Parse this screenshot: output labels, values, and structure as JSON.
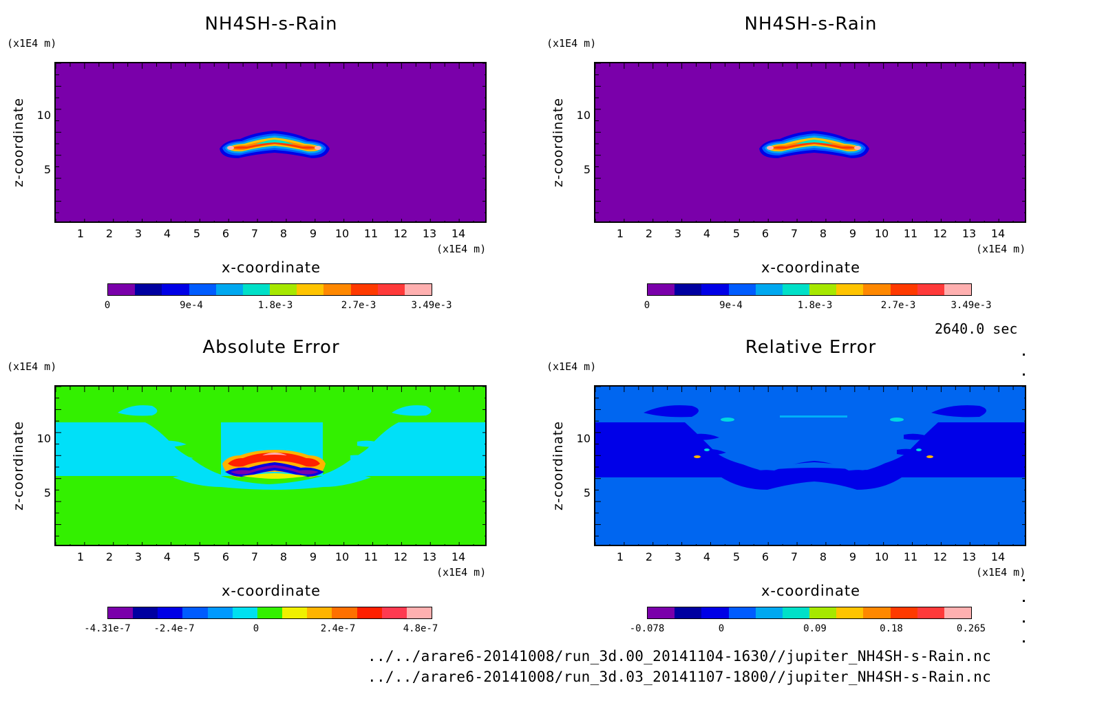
{
  "colors": {
    "purple": "#7a00aa",
    "green": "#33f000",
    "cyan": "#00e0f8",
    "blue_bg": "#0066f0",
    "dark_blue": "#0000e8"
  },
  "colorbar_palette": [
    "#7a00aa",
    "#0000a0",
    "#0000e6",
    "#005cff",
    "#00a8f0",
    "#00e0c8",
    "#a6e800",
    "#ffc400",
    "#ff8800",
    "#ff3a00",
    "#ff3a3a",
    "#ffb0b0"
  ],
  "colorbar_palette_err": [
    "#7a00aa",
    "#0000a0",
    "#0000e6",
    "#005cff",
    "#0099ff",
    "#00e0f0",
    "#33f000",
    "#f0f000",
    "#ffb400",
    "#ff7000",
    "#ff2000",
    "#ff3a50",
    "#ffb0b0"
  ],
  "time_label": "2640.0 sec",
  "file_paths": [
    "../../arare6-20141008/run_3d.00_20141104-1630//jupiter_NH4SH-s-Rain.nc",
    "../../arare6-20141008/run_3d.03_20141107-1800//jupiter_NH4SH-s-Rain.nc"
  ],
  "chart_data": [
    {
      "type": "heatmap",
      "title": "NH4SH-s-Rain",
      "xlabel": "x-coordinate",
      "ylabel": "z-coordinate",
      "x_unit": "(x1E4 m)",
      "z_unit": "(x1E4 m)",
      "x_ticks": [
        "1",
        "2",
        "3",
        "4",
        "5",
        "6",
        "7",
        "8",
        "9",
        "10",
        "11",
        "12",
        "13",
        "14"
      ],
      "z_ticks": [
        "5",
        "10"
      ],
      "xlim": [
        0.05,
        15
      ],
      "zlim": [
        0.05,
        14
      ],
      "colorbar_labels": [
        "0",
        "9e-4",
        "1.8e-3",
        "2.7e-3",
        "3.49e-3"
      ],
      "value_range": [
        0,
        0.00349
      ]
    },
    {
      "type": "heatmap",
      "title": "NH4SH-s-Rain",
      "xlabel": "x-coordinate",
      "ylabel": "z-coordinate",
      "x_unit": "(x1E4 m)",
      "z_unit": "(x1E4 m)",
      "x_ticks": [
        "1",
        "2",
        "3",
        "4",
        "5",
        "6",
        "7",
        "8",
        "9",
        "10",
        "11",
        "12",
        "13",
        "14"
      ],
      "z_ticks": [
        "5",
        "10"
      ],
      "xlim": [
        0.05,
        15
      ],
      "zlim": [
        0.05,
        14
      ],
      "colorbar_labels": [
        "0",
        "9e-4",
        "1.8e-3",
        "2.7e-3",
        "3.49e-3"
      ],
      "value_range": [
        0,
        0.00349
      ]
    },
    {
      "type": "heatmap",
      "title": "Absolute Error",
      "xlabel": "x-coordinate",
      "ylabel": "z-coordinate",
      "x_unit": "(x1E4 m)",
      "z_unit": "(x1E4 m)",
      "x_ticks": [
        "1",
        "2",
        "3",
        "4",
        "5",
        "6",
        "7",
        "8",
        "9",
        "10",
        "11",
        "12",
        "13",
        "14"
      ],
      "z_ticks": [
        "5",
        "10"
      ],
      "xlim": [
        0.05,
        15
      ],
      "zlim": [
        0.05,
        14
      ],
      "colorbar_labels": [
        "-4.31e-7",
        "-2.4e-7",
        "0",
        "2.4e-7",
        "4.8e-7"
      ],
      "value_range": [
        -4.31e-07,
        4.8e-07
      ]
    },
    {
      "type": "heatmap",
      "title": "Relative Error",
      "xlabel": "x-coordinate",
      "ylabel": "z-coordinate",
      "x_unit": "(x1E4 m)",
      "z_unit": "(x1E4 m)",
      "x_ticks": [
        "1",
        "2",
        "3",
        "4",
        "5",
        "6",
        "7",
        "8",
        "9",
        "10",
        "11",
        "12",
        "13",
        "14"
      ],
      "z_ticks": [
        "5",
        "10"
      ],
      "xlim": [
        0.05,
        15
      ],
      "zlim": [
        0.05,
        14
      ],
      "colorbar_labels": [
        "-0.078",
        "0",
        "0.09",
        "0.18",
        "0.265"
      ],
      "value_range": [
        -0.078,
        0.265
      ]
    }
  ]
}
